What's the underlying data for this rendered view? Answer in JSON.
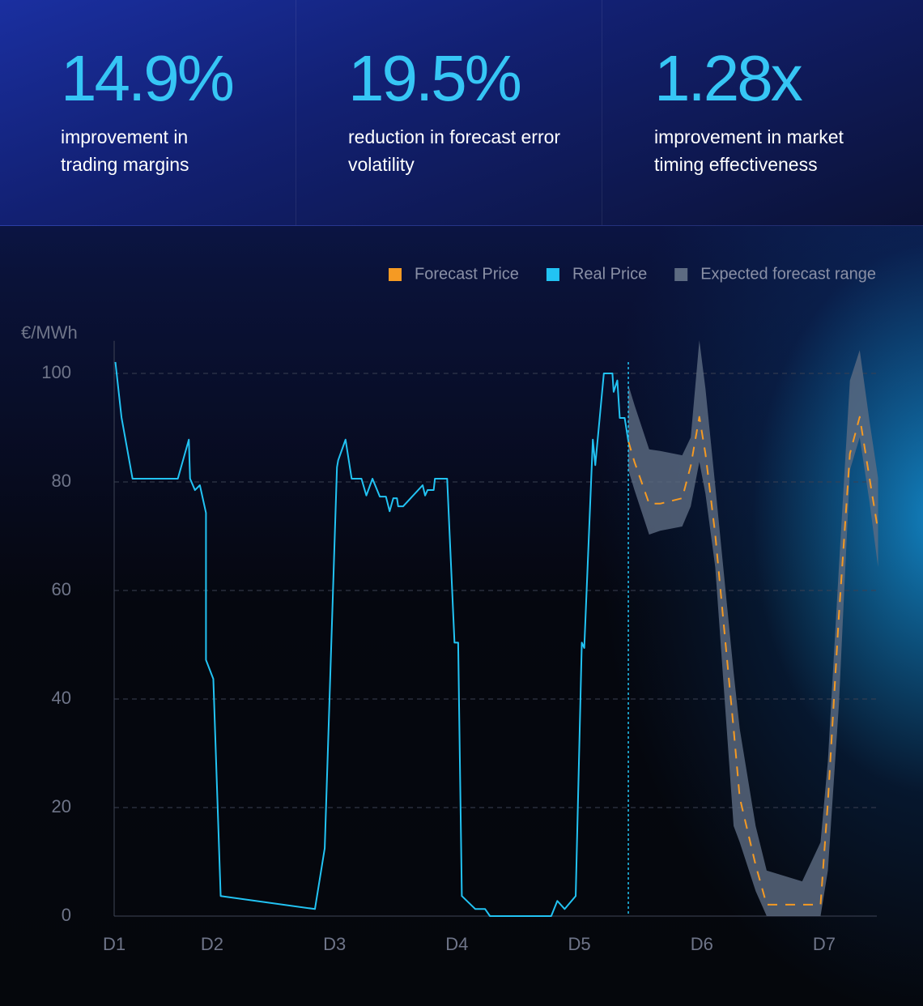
{
  "stats": [
    {
      "value": "14.9%",
      "label": "improvement in trading margins"
    },
    {
      "value": "19.5%",
      "label": "reduction in forecast error volatility"
    },
    {
      "value": "1.28x",
      "label": "improvement in market timing effectiveness"
    }
  ],
  "chart_data": {
    "type": "line",
    "y_label": "€/MWh",
    "xlim": [
      0.2,
      6.43
    ],
    "ylim": [
      0,
      106
    ],
    "xticks": [
      {
        "value": 0.2,
        "label": "D1"
      },
      {
        "value": 1,
        "label": "D2"
      },
      {
        "value": 2,
        "label": "D3"
      },
      {
        "value": 3,
        "label": "D4"
      },
      {
        "value": 4,
        "label": "D5"
      },
      {
        "value": 5,
        "label": "D6"
      },
      {
        "value": 6,
        "label": "D7"
      }
    ],
    "yticks": [
      0,
      20,
      40,
      60,
      80,
      100
    ],
    "grid": true,
    "legend": "top-right",
    "series": [
      {
        "name": "Forecast Price",
        "color": "#f59a23",
        "dashed": true,
        "x": [
          4.4,
          4.45,
          4.57,
          4.66,
          4.84,
          4.91,
          4.98,
          5.03,
          5.11,
          5.26,
          5.31,
          5.44,
          5.53,
          5.82,
          5.97,
          6.03,
          6.12,
          6.21,
          6.29,
          6.37,
          6.44
        ],
        "values": [
          87.5,
          83.7,
          76,
          76,
          77,
          83,
          92,
          85.2,
          70.3,
          34.5,
          21.8,
          9.4,
          2.1,
          2.1,
          2.1,
          21,
          55.4,
          85.2,
          92,
          80.7,
          71
        ]
      },
      {
        "name": "Real Price",
        "color": "#22c3f3",
        "x": [
          0.21,
          0.26,
          0.35,
          0.72,
          0.81,
          0.82,
          0.86,
          0.9,
          0.95,
          0.95,
          1.01,
          1.07,
          1.84,
          1.92,
          2.02,
          2.03,
          2.09,
          2.14,
          2.22,
          2.26,
          2.31,
          2.37,
          2.42,
          2.45,
          2.48,
          2.51,
          2.52,
          2.56,
          2.72,
          2.74,
          2.76,
          2.81,
          2.82,
          2.92,
          2.98,
          3.01,
          3.04,
          3.15,
          3.23,
          3.27,
          3.77,
          3.82,
          3.88,
          3.97,
          4.02,
          4.04,
          4.11,
          4.13,
          4.2,
          4.27,
          4.28,
          4.31,
          4.33,
          4.37,
          4.4
        ],
        "values": [
          102.1,
          91.9,
          80.6,
          80.6,
          87.8,
          80.6,
          78.5,
          79.4,
          74.3,
          47.2,
          43.7,
          3.7,
          1.3,
          12.5,
          82.7,
          84,
          87.8,
          80.6,
          80.6,
          77.5,
          80.6,
          77.3,
          77.3,
          74.6,
          77,
          77,
          75.5,
          75.5,
          79.4,
          77.5,
          78.5,
          78.5,
          80.6,
          80.6,
          50.4,
          50.4,
          3.7,
          1.3,
          1.3,
          0,
          0,
          2.8,
          1.3,
          3.7,
          50.4,
          49.4,
          87.8,
          83.1,
          100,
          100,
          96.6,
          98.7,
          91.8,
          91.8,
          87.5
        ]
      },
      {
        "name": "Expected forecast range",
        "color": "#5d6b82",
        "band": true,
        "x": [
          4.4,
          4.45,
          4.57,
          4.66,
          4.84,
          4.91,
          4.98,
          5.03,
          5.11,
          5.26,
          5.31,
          5.44,
          5.53,
          5.82,
          5.97,
          6.03,
          6.12,
          6.21,
          6.29,
          6.37,
          6.44
        ],
        "high": [
          97.9,
          94.2,
          86,
          85.7,
          84.9,
          88.2,
          106.1,
          97.2,
          79.3,
          44.9,
          34.5,
          16.6,
          8.4,
          6.4,
          13.6,
          28.5,
          64.3,
          98.7,
          104.3,
          91.2,
          80.7
        ],
        "low": [
          82.2,
          78.5,
          70.3,
          71,
          71.8,
          75.5,
          83.7,
          77.8,
          64.3,
          16.6,
          13.6,
          4.6,
          0,
          0,
          0,
          8.4,
          39,
          82.2,
          88.2,
          76.3,
          64.3
        ]
      }
    ]
  }
}
